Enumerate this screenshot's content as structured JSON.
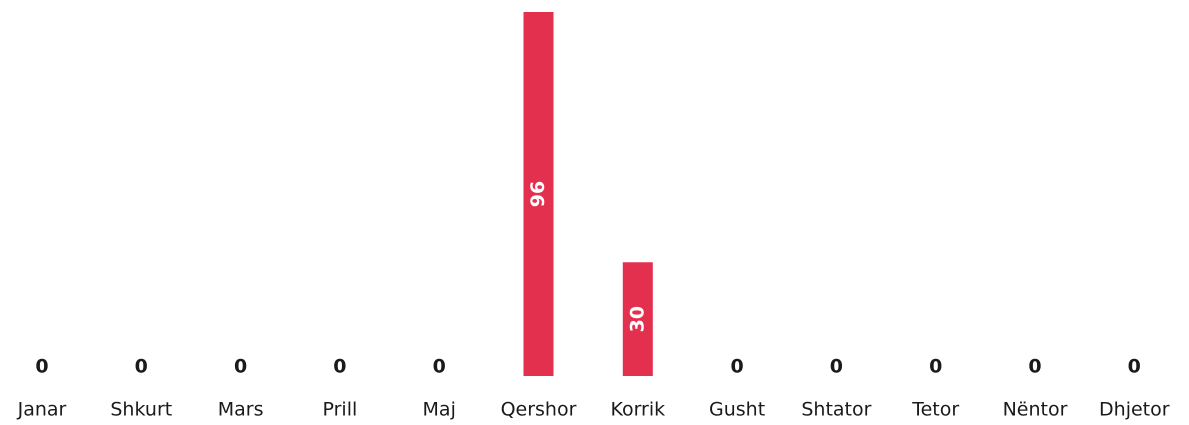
{
  "chart_data": {
    "type": "bar",
    "categories": [
      "Janar",
      "Shkurt",
      "Mars",
      "Prill",
      "Maj",
      "Qershor",
      "Korrik",
      "Gusht",
      "Shtator",
      "Tetor",
      "Nëntor",
      "Dhjetor"
    ],
    "values": [
      0,
      0,
      0,
      0,
      0,
      96,
      30,
      0,
      0,
      0,
      0,
      0
    ],
    "color": "#e2304e",
    "ylim": [
      0,
      96
    ]
  }
}
